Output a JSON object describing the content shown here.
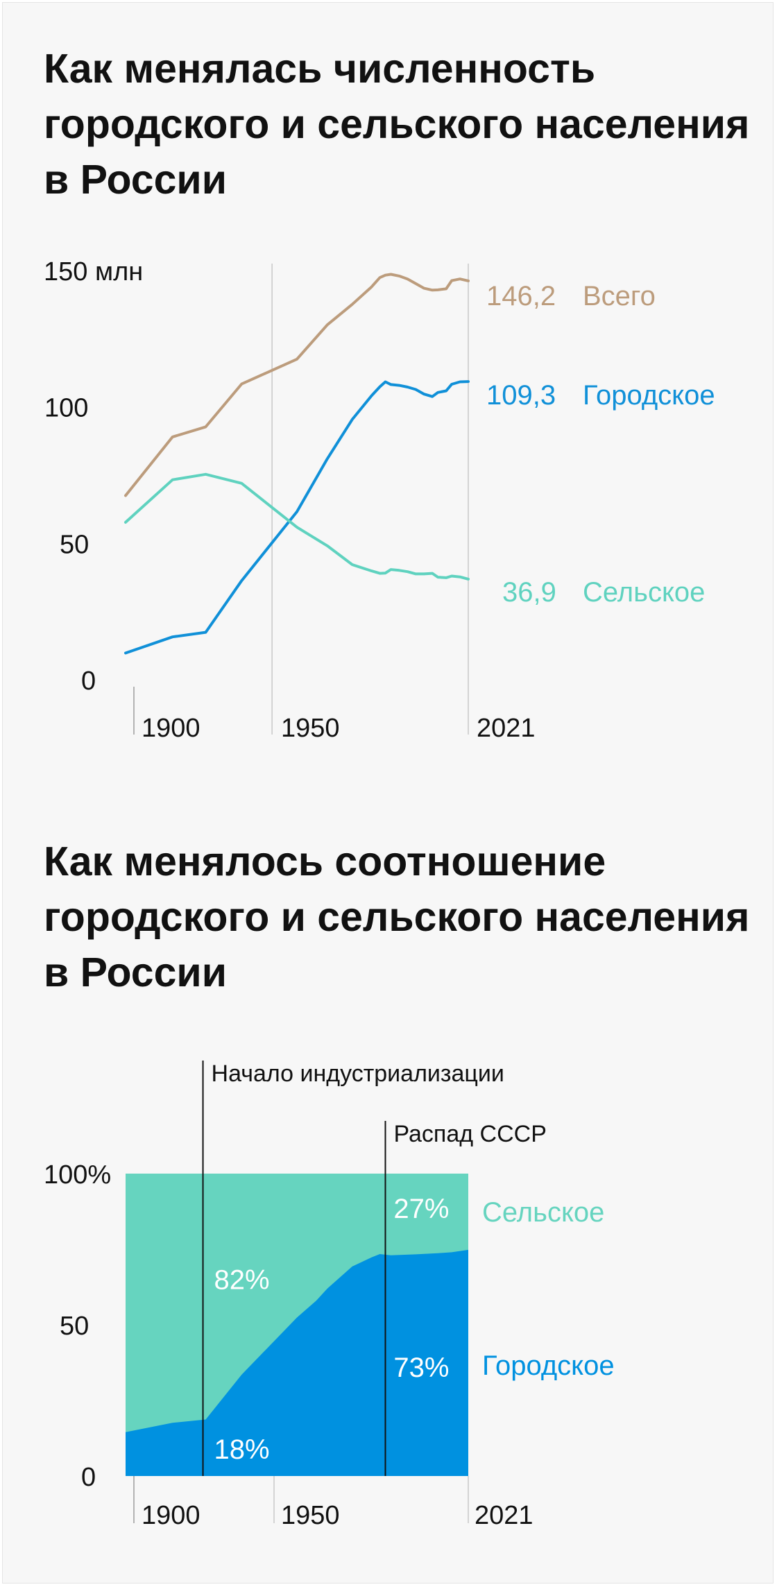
{
  "chart1_title": "Как менялась численность городского и сельского населения в России",
  "chart2_title": "Как менялось соотношение городского и сельского населения в России",
  "colors": {
    "total": "#bc9c7c",
    "urban": "#1090d8",
    "rural": "#5fd2bf",
    "urban_area": "#0091e0",
    "rural_area": "#66d4bf",
    "axis": "#9a9a9a",
    "text": "#111111"
  },
  "chart_data": [
    {
      "type": "line",
      "title": "Как менялась численность городского и сельского населения в России",
      "ylabel": "",
      "y_unit": "млн",
      "ylim": [
        0,
        150
      ],
      "xlim": [
        1897,
        2021
      ],
      "y_ticks": [
        {
          "value": 0,
          "label": "0"
        },
        {
          "value": 50,
          "label": "50"
        },
        {
          "value": 100,
          "label": "100"
        },
        {
          "value": 150,
          "label": "150 млн"
        }
      ],
      "x_ticks": [
        {
          "value": 1900,
          "label": "1900"
        },
        {
          "value": 1950,
          "label": "1950"
        },
        {
          "value": 2021,
          "label": "2021"
        }
      ],
      "grid": "vertical",
      "series": [
        {
          "name": "Всего",
          "color_key": "total",
          "end_label": "146,2",
          "points": [
            [
              1897,
              67.5
            ],
            [
              1914,
              89
            ],
            [
              1926,
              92.7
            ],
            [
              1939,
              108.4
            ],
            [
              1959,
              117.5
            ],
            [
              1970,
              130.1
            ],
            [
              1979,
              137.6
            ],
            [
              1986,
              144
            ],
            [
              1989,
              147.4
            ],
            [
              1991,
              148.3
            ],
            [
              1993,
              148.6
            ],
            [
              1996,
              148
            ],
            [
              1999,
              146.9
            ],
            [
              2002,
              145.2
            ],
            [
              2005,
              143.5
            ],
            [
              2008,
              142.8
            ],
            [
              2010,
              142.9
            ],
            [
              2013,
              143.3
            ],
            [
              2015,
              146.3
            ],
            [
              2018,
              146.9
            ],
            [
              2021,
              146.2
            ]
          ]
        },
        {
          "name": "Городское",
          "color_key": "urban",
          "end_label": "109,3",
          "points": [
            [
              1897,
              9.8
            ],
            [
              1914,
              15.7
            ],
            [
              1926,
              17.4
            ],
            [
              1939,
              36.3
            ],
            [
              1959,
              61.6
            ],
            [
              1970,
              81
            ],
            [
              1979,
              95.4
            ],
            [
              1986,
              104.1
            ],
            [
              1989,
              107.4
            ],
            [
              1991,
              109.2
            ],
            [
              1993,
              108.2
            ],
            [
              1996,
              107.9
            ],
            [
              1999,
              107.3
            ],
            [
              2002,
              106.4
            ],
            [
              2005,
              104.7
            ],
            [
              2008,
              103.8
            ],
            [
              2010,
              105.3
            ],
            [
              2013,
              105.9
            ],
            [
              2015,
              108.3
            ],
            [
              2018,
              109.2
            ],
            [
              2021,
              109.3
            ]
          ]
        },
        {
          "name": "Сельское",
          "color_key": "rural",
          "end_label": "36,9",
          "points": [
            [
              1897,
              57.7
            ],
            [
              1914,
              73.3
            ],
            [
              1926,
              75.3
            ],
            [
              1939,
              72
            ],
            [
              1959,
              55.9
            ],
            [
              1970,
              49.1
            ],
            [
              1979,
              42.2
            ],
            [
              1986,
              39.9
            ],
            [
              1989,
              39
            ],
            [
              1991,
              39.1
            ],
            [
              1993,
              40.4
            ],
            [
              1996,
              40.1
            ],
            [
              1999,
              39.6
            ],
            [
              2002,
              38.8
            ],
            [
              2005,
              38.8
            ],
            [
              2008,
              39
            ],
            [
              2010,
              37.6
            ],
            [
              2013,
              37.4
            ],
            [
              2015,
              38
            ],
            [
              2018,
              37.7
            ],
            [
              2021,
              36.9
            ]
          ]
        }
      ]
    },
    {
      "type": "area",
      "stacked": true,
      "percent": true,
      "title": "Как менялось соотношение городского и сельского населения в России",
      "ylabel": "",
      "ylim": [
        0,
        100
      ],
      "xlim": [
        1897,
        2021
      ],
      "y_ticks": [
        {
          "value": 0,
          "label": "0"
        },
        {
          "value": 50,
          "label": "50"
        },
        {
          "value": 100,
          "label": "100%"
        }
      ],
      "x_ticks": [
        {
          "value": 1900,
          "label": "1900"
        },
        {
          "value": 1950,
          "label": "1950"
        },
        {
          "value": 2021,
          "label": "2021"
        }
      ],
      "urban_share": [
        [
          1897,
          14.5
        ],
        [
          1914,
          17.6
        ],
        [
          1926,
          18.7
        ],
        [
          1939,
          33.5
        ],
        [
          1959,
          52.4
        ],
        [
          1966,
          58
        ],
        [
          1970,
          62
        ],
        [
          1979,
          69.3
        ],
        [
          1986,
          72.3
        ],
        [
          1989,
          73.4
        ],
        [
          1993,
          73
        ],
        [
          2002,
          73.3
        ],
        [
          2010,
          73.7
        ],
        [
          2015,
          74
        ],
        [
          2021,
          74.8
        ]
      ],
      "series": [
        {
          "name": "Сельское",
          "color_key": "rural_area",
          "label": "Сельское"
        },
        {
          "name": "Городское",
          "color_key": "urban_area",
          "label": "Городское"
        }
      ],
      "data_labels": [
        {
          "text": "82%",
          "x": 1929,
          "y": 65,
          "color": "#ffffff"
        },
        {
          "text": "18%",
          "x": 1929,
          "y": 9,
          "color": "#ffffff"
        },
        {
          "text": "27%",
          "x": 1994,
          "y": 88.5,
          "color": "#ffffff"
        },
        {
          "text": "73%",
          "x": 1994,
          "y": 36,
          "color": "#ffffff"
        }
      ],
      "annotations": [
        {
          "name": "industrialization-marker",
          "x": 1925,
          "text": "Начало индустриализации"
        },
        {
          "name": "ussr-collapse-marker",
          "x": 1991,
          "text": "Распад СССР"
        }
      ]
    }
  ]
}
